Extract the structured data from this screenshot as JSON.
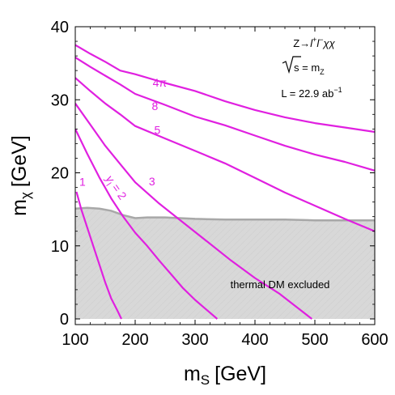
{
  "chart_data": {
    "type": "line",
    "xlabel": "m",
    "xlabel_sub": "S",
    "xlabel_unit": "[GeV]",
    "ylabel": "m",
    "ylabel_sub": "χ",
    "ylabel_unit": "[GeV]",
    "xlim": [
      100,
      600
    ],
    "ylim": [
      0,
      40
    ],
    "x_ticks": [
      100,
      200,
      300,
      400,
      500,
      600
    ],
    "y_ticks": [
      0,
      10,
      20,
      30,
      40
    ],
    "grid": false,
    "colors": {
      "contour": "#E020E0",
      "excluded_fill": "#D8D8D8",
      "excluded_edge": "#A8A8A8"
    },
    "annotations": {
      "process_prefix": "Z→",
      "process_l": "l",
      "process_plus": "+",
      "process_mid": "l",
      "process_minus": "−",
      "process_suffix": "χχ",
      "sqrt_body": "s = m",
      "sqrt_sub": "Z",
      "lumi_prefix": "L = 22.9 ab",
      "lumi_sup": "−1",
      "excluded_label": "thermal DM excluded",
      "coupling_y": "y",
      "coupling_sub": "l",
      "coupling_suffix": " = 2"
    },
    "excluded_region": {
      "boundary": [
        [
          100,
          15.1
        ],
        [
          120,
          15.2
        ],
        [
          140,
          15.1
        ],
        [
          160,
          14.8
        ],
        [
          180,
          14.2
        ],
        [
          200,
          13.8
        ],
        [
          220,
          13.9
        ],
        [
          250,
          13.9
        ],
        [
          300,
          13.7
        ],
        [
          350,
          13.6
        ],
        [
          400,
          13.6
        ],
        [
          450,
          13.6
        ],
        [
          500,
          13.5
        ],
        [
          550,
          13.5
        ],
        [
          600,
          13.5
        ]
      ]
    },
    "series": [
      {
        "label": "1",
        "values": [
          [
            102,
            17.4
          ],
          [
            110,
            15.0
          ],
          [
            120,
            12.5
          ],
          [
            130,
            10.0
          ],
          [
            140,
            7.5
          ],
          [
            150,
            5.0
          ],
          [
            160,
            2.8
          ],
          [
            170,
            1.2
          ],
          [
            177,
            0.0
          ]
        ]
      },
      {
        "label": "2",
        "values": [
          [
            100,
            26.0
          ],
          [
            120,
            22.6
          ],
          [
            140,
            19.4
          ],
          [
            160,
            16.5
          ],
          [
            180,
            14.0
          ],
          [
            200,
            11.8
          ],
          [
            220,
            10.0
          ],
          [
            240,
            8.0
          ],
          [
            260,
            6.1
          ],
          [
            280,
            4.2
          ],
          [
            300,
            2.6
          ],
          [
            320,
            1.2
          ],
          [
            337,
            0.0
          ]
        ]
      },
      {
        "label": "3",
        "values": [
          [
            100,
            29.5
          ],
          [
            125,
            26.6
          ],
          [
            150,
            23.7
          ],
          [
            175,
            21.2
          ],
          [
            200,
            18.7
          ],
          [
            240,
            15.8
          ],
          [
            280,
            13.2
          ],
          [
            320,
            10.6
          ],
          [
            360,
            8.0
          ],
          [
            400,
            5.6
          ],
          [
            440,
            3.5
          ],
          [
            470,
            1.6
          ],
          [
            495,
            0.0
          ]
        ]
      },
      {
        "label": "5",
        "values": [
          [
            100,
            33.0
          ],
          [
            125,
            31.2
          ],
          [
            150,
            29.5
          ],
          [
            175,
            28.0
          ],
          [
            200,
            26.4
          ],
          [
            250,
            24.7
          ],
          [
            300,
            23.0
          ],
          [
            350,
            21.3
          ],
          [
            400,
            19.3
          ],
          [
            450,
            17.3
          ],
          [
            500,
            15.5
          ],
          [
            550,
            13.7
          ],
          [
            600,
            12.0
          ]
        ]
      },
      {
        "label": "8",
        "values": [
          [
            100,
            35.8
          ],
          [
            125,
            34.5
          ],
          [
            150,
            33.3
          ],
          [
            175,
            32.1
          ],
          [
            200,
            30.8
          ],
          [
            250,
            29.3
          ],
          [
            300,
            27.7
          ],
          [
            350,
            26.5
          ],
          [
            400,
            25.1
          ],
          [
            450,
            23.7
          ],
          [
            500,
            22.5
          ],
          [
            550,
            21.5
          ],
          [
            600,
            20.3
          ]
        ]
      },
      {
        "label": "4π",
        "values": [
          [
            100,
            37.5
          ],
          [
            125,
            36.3
          ],
          [
            150,
            35.2
          ],
          [
            175,
            34.0
          ],
          [
            200,
            33.5
          ],
          [
            250,
            32.3
          ],
          [
            300,
            31.2
          ],
          [
            350,
            29.8
          ],
          [
            400,
            28.6
          ],
          [
            450,
            27.6
          ],
          [
            500,
            26.8
          ],
          [
            550,
            26.2
          ],
          [
            600,
            25.6
          ]
        ]
      }
    ]
  }
}
